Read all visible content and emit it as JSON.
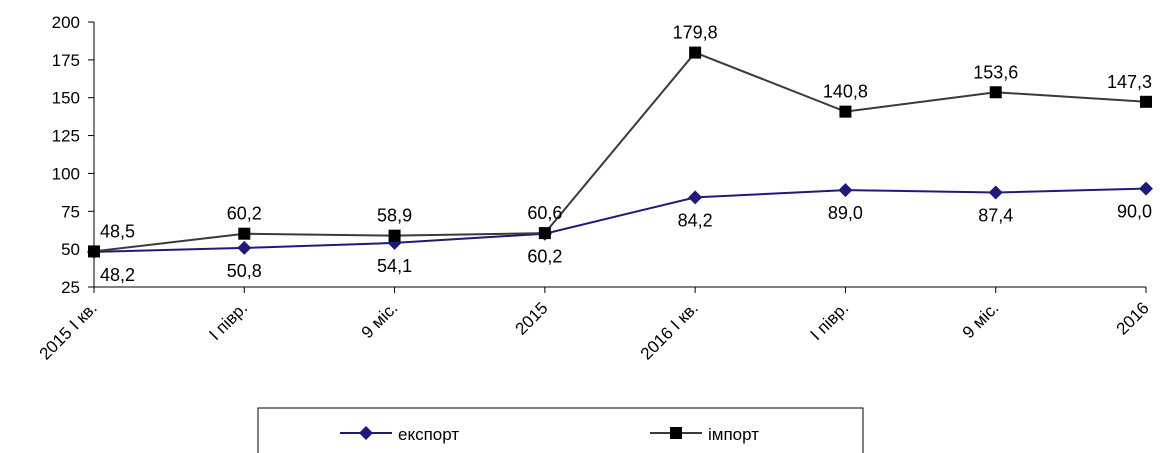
{
  "chart_data": {
    "type": "line",
    "title": "",
    "xlabel": "",
    "ylabel": "",
    "categories": [
      "2015 І кв.",
      "І півр.",
      "9 міс.",
      "2015",
      "2016 І кв.",
      "І півр.",
      "9 міс.",
      "2016"
    ],
    "ylim": [
      25,
      200
    ],
    "yticks": [
      25,
      50,
      75,
      100,
      125,
      150,
      175,
      200
    ],
    "grid": false,
    "legend_position": "bottom",
    "series": [
      {
        "name": "експорт",
        "color": "#1f1a7a",
        "marker": "diamond",
        "values": [
          48.2,
          50.8,
          54.1,
          60.2,
          84.2,
          89.0,
          87.4,
          90.0
        ],
        "labels": [
          "48,2",
          "50,8",
          "54,1",
          "60,2",
          "84,2",
          "89,0",
          "87,4",
          "90,0"
        ]
      },
      {
        "name": "імпорт",
        "color": "#3a3a3a",
        "marker": "square",
        "values": [
          48.5,
          60.2,
          58.9,
          60.6,
          179.8,
          140.8,
          153.6,
          147.3
        ],
        "labels": [
          "48,5",
          "60,2",
          "58,9",
          "60,6",
          "179,8",
          "140,8",
          "153,6",
          "147,3"
        ]
      }
    ]
  }
}
